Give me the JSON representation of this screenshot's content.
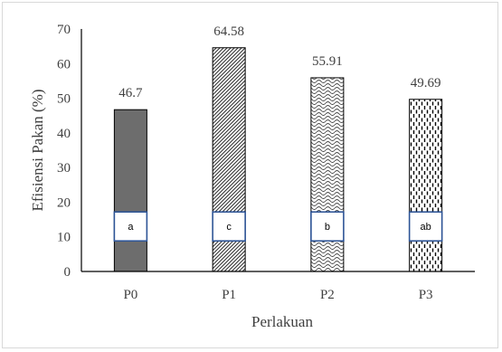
{
  "chart_data": {
    "type": "bar",
    "categories": [
      "P0",
      "P1",
      "P2",
      "P3"
    ],
    "values": [
      46.7,
      64.58,
      55.91,
      49.69
    ],
    "data_labels": [
      "46.7",
      "64.58",
      "55.91",
      "49.69"
    ],
    "significance_letters": [
      "a",
      "c",
      "b",
      "ab"
    ],
    "xlabel": "Perlakuan",
    "ylabel": "Efisiensi Pakan (%)",
    "ylim": [
      0,
      70
    ],
    "yticks": [
      0,
      10,
      20,
      30,
      40,
      50,
      60,
      70
    ],
    "grid": false,
    "bar_fills": [
      "solid-gray",
      "diagonal-hatch",
      "wave-dots",
      "dashed-vertical"
    ],
    "colors": {
      "bar_dark": "#6d6d6d",
      "bar_edge": "#000000",
      "letter_box_border": "#2e5597",
      "text": "#404040"
    }
  }
}
